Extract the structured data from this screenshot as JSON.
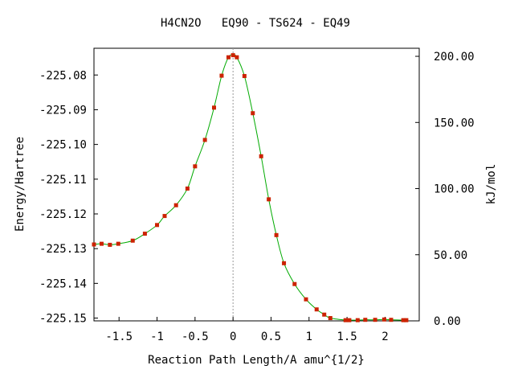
{
  "chart_data": {
    "type": "line",
    "title": "H4CN2O   EQ90 - TS624 - EQ49",
    "xlabel": "Reaction Path Length/A amu^{1/2}",
    "ylabel": "Energy/Hartree",
    "y2label": "kJ/mol",
    "xlim": [
      -1.83,
      2.45
    ],
    "ylim": [
      -225.1508,
      -225.0723
    ],
    "y2lim": [
      0.0,
      206.1
    ],
    "x_ticks": [
      "-1.5",
      "-1",
      "-0.5",
      "0",
      "0.5",
      "1",
      "1.5",
      "2"
    ],
    "x_tick_values": [
      -1.5,
      -1.0,
      -0.5,
      0.0,
      0.5,
      1.0,
      1.5,
      2.0
    ],
    "y_ticks": [
      "-225.08",
      "-225.09",
      "-225.10",
      "-225.11",
      "-225.12",
      "-225.13",
      "-225.14",
      "-225.15"
    ],
    "y_tick_values": [
      -225.08,
      -225.09,
      -225.1,
      -225.11,
      -225.12,
      -225.13,
      -225.14,
      -225.15
    ],
    "y2_ticks": [
      "200.00",
      "150.00",
      "100.00",
      "50.00",
      "0.00"
    ],
    "y2_tick_values": [
      200,
      150,
      100,
      50,
      0
    ],
    "ts_marker_x": 0.0,
    "line_color": "#00aa00",
    "point_color": "#cc2200",
    "dashed_color": "#999999",
    "series": [
      {
        "x": [
          -1.83,
          -1.73,
          -1.62,
          -1.51,
          -1.32,
          -1.16,
          -1.0,
          -0.9,
          -0.75,
          -0.6,
          -0.5,
          -0.37,
          -0.25,
          -0.15,
          -0.06,
          0.0,
          0.05,
          0.15,
          0.26,
          0.37,
          0.47,
          0.57,
          0.67,
          0.81,
          0.96,
          1.1,
          1.2,
          1.28,
          1.48,
          1.53,
          1.64,
          1.74,
          1.87,
          1.99,
          2.08,
          2.24,
          2.28
        ],
        "y": [
          -225.1288,
          -225.1286,
          -225.1289,
          -225.1286,
          -225.1277,
          -225.1257,
          -225.1232,
          -225.1206,
          -225.1175,
          -225.1127,
          -225.1063,
          -225.0987,
          -225.0894,
          -225.0802,
          -225.0749,
          -225.0743,
          -225.0749,
          -225.0803,
          -225.091,
          -225.1034,
          -225.1158,
          -225.1261,
          -225.1342,
          -225.1402,
          -225.1446,
          -225.1475,
          -225.149,
          -225.15,
          -225.1506,
          -225.1506,
          -225.1506,
          -225.1505,
          -225.1505,
          -225.1504,
          -225.1505,
          -225.1506,
          -225.1506
        ]
      }
    ]
  }
}
